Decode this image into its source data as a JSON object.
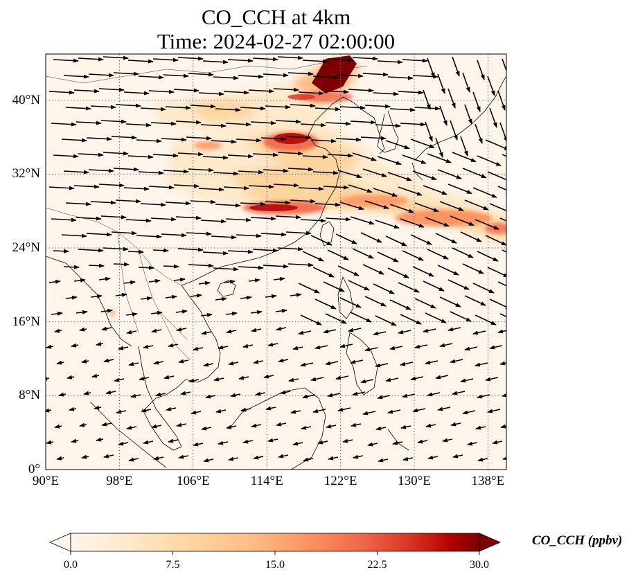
{
  "title": {
    "line1": "CO_CCH at 4km",
    "line2": "Time: 2024-02-27 02:00:00"
  },
  "map": {
    "lon_range": [
      90,
      140
    ],
    "lat_range": [
      0,
      45
    ],
    "lat_ticks": [
      {
        "value": 0,
        "label": "0°"
      },
      {
        "value": 8,
        "label": "8°N"
      },
      {
        "value": 16,
        "label": "16°N"
      },
      {
        "value": 24,
        "label": "24°N"
      },
      {
        "value": 32,
        "label": "32°N"
      },
      {
        "value": 40,
        "label": "40°N"
      }
    ],
    "lon_ticks": [
      {
        "value": 90,
        "label": "90°E"
      },
      {
        "value": 98,
        "label": "98°E"
      },
      {
        "value": 106,
        "label": "106°E"
      },
      {
        "value": 114,
        "label": "114°E"
      },
      {
        "value": 122,
        "label": "122°E"
      },
      {
        "value": 130,
        "label": "130°E"
      },
      {
        "value": 138,
        "label": "138°E"
      }
    ],
    "gridlines": true
  },
  "colorbar": {
    "title": "CO_CCH (ppbv)",
    "min": 0,
    "max": 30,
    "extend": "both",
    "ticks": [
      "0.0",
      "7.5",
      "15.0",
      "22.5",
      "30.0"
    ],
    "colors": [
      "#fff5eb",
      "#fdd49e",
      "#fdbb84",
      "#fc8d59",
      "#ef6548",
      "#d7301f",
      "#b30000",
      "#7f0000"
    ]
  }
}
